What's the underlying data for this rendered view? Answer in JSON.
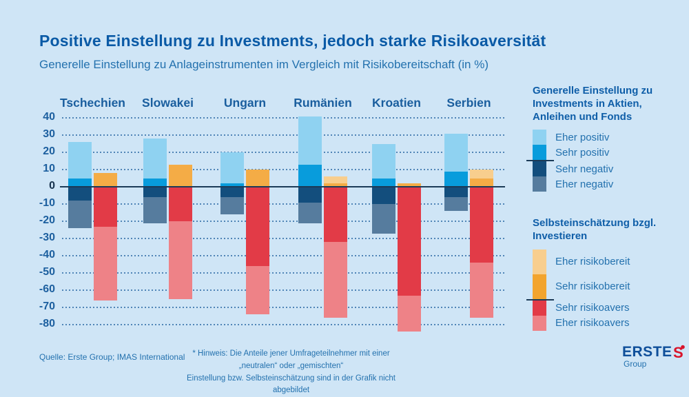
{
  "title": "Positive Einstellung zu Investments, jedoch starke Risikoaversität",
  "subtitle": "Generelle Einstellung zu Anlageinstrumenten im Vergleich mit Risikobereitschaft (in %)",
  "chart_data": {
    "type": "bar",
    "stacked": true,
    "unit": "%",
    "categories": [
      "Tschechien",
      "Slowakei",
      "Ungarn",
      "Rumänien",
      "Kroatien",
      "Serbien"
    ],
    "ylim": [
      -80,
      40
    ],
    "ytick_step": 10,
    "grid": "dotted-horizontal",
    "legend_position": "right",
    "series": [
      {
        "name": "Eher positiv",
        "group": "invest",
        "stack_side": "pos",
        "color": "#8FD2F1",
        "values": [
          21,
          23,
          18,
          28,
          20,
          22
        ]
      },
      {
        "name": "Sehr positiv",
        "group": "invest",
        "stack_side": "pos",
        "color": "#089CDC",
        "values": [
          5,
          5,
          2,
          13,
          5,
          9
        ]
      },
      {
        "name": "Sehr negativ",
        "group": "invest",
        "stack_side": "neg",
        "color": "#134E7D",
        "values": [
          -8,
          -6,
          -6,
          -9,
          -10,
          -6
        ]
      },
      {
        "name": "Eher negativ",
        "group": "invest",
        "stack_side": "neg",
        "color": "#567C9E",
        "values": [
          -16,
          -15,
          -10,
          -12,
          -17,
          -8
        ]
      },
      {
        "name": "Eher risikobereit",
        "group": "risk",
        "stack_side": "pos",
        "color": "#F8CE8E",
        "values": [
          0,
          0,
          0,
          4,
          0,
          5
        ]
      },
      {
        "name": "Sehr risikobereit",
        "group": "risk",
        "stack_side": "pos",
        "color": "#F4AC46",
        "values": [
          8,
          13,
          10,
          2,
          2,
          5
        ]
      },
      {
        "name": "Sehr risikoavers",
        "group": "risk",
        "stack_side": "neg",
        "color": "#E23B47",
        "values": [
          -23,
          -20,
          -46,
          -32,
          -63,
          -44
        ]
      },
      {
        "name": "Eher risikoavers",
        "group": "risk",
        "stack_side": "neg",
        "color": "#EE8287",
        "values": [
          -43,
          -45,
          -28,
          -44,
          -21,
          -32
        ]
      }
    ]
  },
  "legends": [
    {
      "title_lines": [
        "Generelle Einstellung zu",
        "Investments in Aktien,",
        "Anleihen und Fonds"
      ],
      "items": [
        {
          "label": "Eher positiv",
          "color": "#8FD2F1",
          "h": 22
        },
        {
          "label": "Sehr positiv",
          "color": "#089CDC",
          "h": 22
        },
        {
          "label": "Sehr negativ",
          "color": "#134E7D",
          "h": 22,
          "divider_before": true
        },
        {
          "label": "Eher negativ",
          "color": "#567C9E",
          "h": 22
        }
      ]
    },
    {
      "title_lines": [
        "Selbsteinschätzung bzgl.",
        "Investieren"
      ],
      "items": [
        {
          "label": "Eher risikobereit",
          "color": "#F8CE8E",
          "h": 36
        },
        {
          "label": "Sehr risikobereit",
          "color": "#F2A42E",
          "h": 36
        },
        {
          "label": "Sehr risikoavers",
          "color": "#E23B47",
          "h": 22,
          "divider_before": true
        },
        {
          "label": "Eher risikoavers",
          "color": "#EE8287",
          "h": 22
        }
      ]
    }
  ],
  "footer": {
    "source": "Quelle: Erste Group; IMAS International",
    "note_line1": "* Hinweis: Die Anteile jener Umfrageteilnehmer mit einer „neutralen“ oder „gemischten“",
    "note_line2": "Einstellung bzw. Selbsteinschätzung sind in der Grafik nicht abgebildet"
  },
  "logo": {
    "wordmark": "ERSTE",
    "sub": "Group"
  },
  "colors": {
    "background": "#CFE5F6",
    "title": "#0A5AA6",
    "text_blue": "#2371AE",
    "axis_text": "#1C5F9F",
    "zero_line": "#1B3A57",
    "logo_red": "#D9142B",
    "logo_blue": "#0F4F9A"
  }
}
